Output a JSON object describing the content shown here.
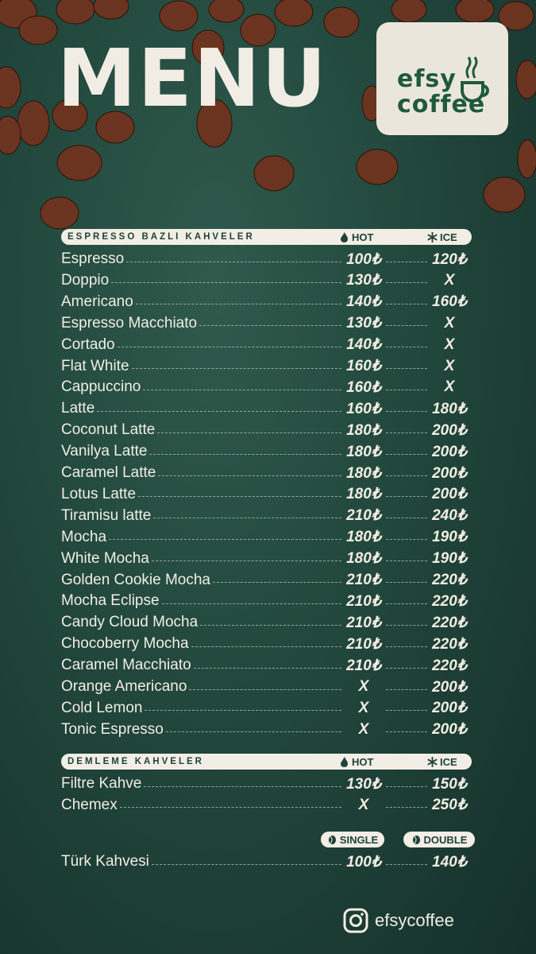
{
  "header": {
    "title": "MENU",
    "logo": [
      "efsy",
      "coffee"
    ]
  },
  "sections": [
    {
      "title": "ESPRESSO BAZLI KAHVELER",
      "columns": [
        "HOT",
        "ICE"
      ],
      "items": [
        {
          "name": "Espresso",
          "prices": [
            "100₺",
            "120₺"
          ]
        },
        {
          "name": "Doppio",
          "prices": [
            "130₺",
            "X"
          ]
        },
        {
          "name": "Americano",
          "prices": [
            "140₺",
            "160₺"
          ]
        },
        {
          "name": "Espresso Macchiato",
          "prices": [
            "130₺",
            "X"
          ]
        },
        {
          "name": "Cortado",
          "prices": [
            "140₺",
            "X"
          ]
        },
        {
          "name": "Flat White",
          "prices": [
            "160₺",
            "X"
          ]
        },
        {
          "name": "Cappuccino",
          "prices": [
            "160₺",
            "X"
          ]
        },
        {
          "name": "Latte",
          "prices": [
            "160₺",
            "180₺"
          ]
        },
        {
          "name": "Coconut Latte",
          "prices": [
            "180₺",
            "200₺"
          ]
        },
        {
          "name": "Vanilya Latte",
          "prices": [
            "180₺",
            "200₺"
          ]
        },
        {
          "name": "Caramel Latte",
          "prices": [
            "180₺",
            "200₺"
          ]
        },
        {
          "name": "Lotus Latte",
          "prices": [
            "180₺",
            "200₺"
          ]
        },
        {
          "name": "Tiramisu latte",
          "prices": [
            "210₺",
            "240₺"
          ]
        },
        {
          "name": "Mocha",
          "prices": [
            "180₺",
            "190₺"
          ]
        },
        {
          "name": "White Mocha",
          "prices": [
            "180₺",
            "190₺"
          ]
        },
        {
          "name": "Golden Cookie Mocha",
          "prices": [
            "210₺",
            "220₺"
          ]
        },
        {
          "name": "Mocha Eclipse",
          "prices": [
            "210₺",
            "220₺"
          ]
        },
        {
          "name": "Candy Cloud Mocha",
          "prices": [
            "210₺",
            "220₺"
          ]
        },
        {
          "name": "Chocoberry Mocha",
          "prices": [
            "210₺",
            "220₺"
          ]
        },
        {
          "name": "Caramel Macchiato",
          "prices": [
            "210₺",
            "220₺"
          ]
        },
        {
          "name": "Orange Americano",
          "prices": [
            "X",
            "200₺"
          ]
        },
        {
          "name": "Cold Lemon",
          "prices": [
            "X",
            "200₺"
          ]
        },
        {
          "name": "Tonic Espresso",
          "prices": [
            "X",
            "200₺"
          ]
        }
      ]
    },
    {
      "title": "DEMLEME KAHVELER",
      "columns": [
        "HOT",
        "ICE"
      ],
      "items": [
        {
          "name": "Filtre Kahve",
          "prices": [
            "130₺",
            "150₺"
          ]
        },
        {
          "name": "Chemex",
          "prices": [
            "X",
            "250₺"
          ]
        }
      ]
    },
    {
      "columns": [
        "SINGLE",
        "DOUBLE"
      ],
      "items": [
        {
          "name": "Türk Kahvesi",
          "prices": [
            "100₺",
            "140₺"
          ]
        }
      ]
    }
  ],
  "footer": {
    "instagram": "efsycoffee"
  }
}
